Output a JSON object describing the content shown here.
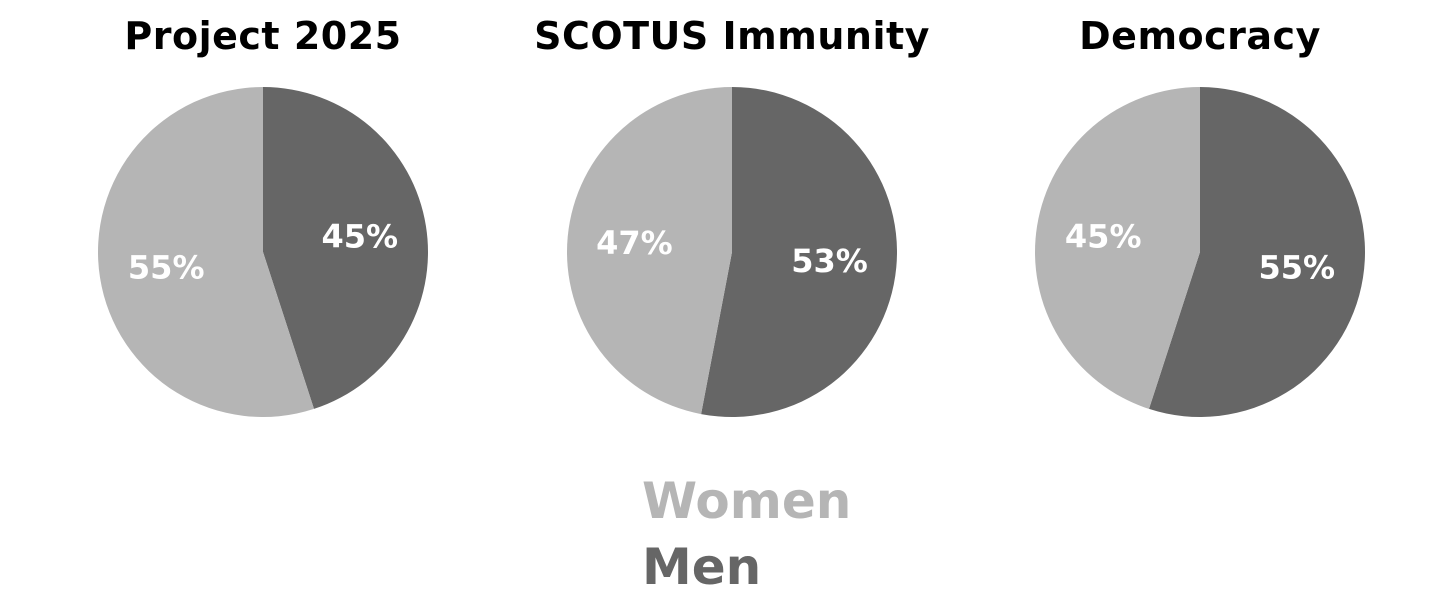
{
  "colors": {
    "women": "#b5b5b5",
    "men": "#666666",
    "label_text": "#ffffff",
    "title_text": "#000000"
  },
  "legend": {
    "women_label": "Women",
    "men_label": "Men"
  },
  "chart_data": [
    {
      "type": "pie",
      "title": "Project 2025",
      "slices": [
        {
          "name": "Men",
          "value": 45,
          "label": "45%"
        },
        {
          "name": "Women",
          "value": 55,
          "label": "55%"
        }
      ]
    },
    {
      "type": "pie",
      "title": "SCOTUS Immunity",
      "slices": [
        {
          "name": "Men",
          "value": 53,
          "label": "53%"
        },
        {
          "name": "Women",
          "value": 47,
          "label": "47%"
        }
      ]
    },
    {
      "type": "pie",
      "title": "Democracy",
      "slices": [
        {
          "name": "Men",
          "value": 55,
          "label": "55%"
        },
        {
          "name": "Women",
          "value": 45,
          "label": "45%"
        }
      ]
    }
  ]
}
